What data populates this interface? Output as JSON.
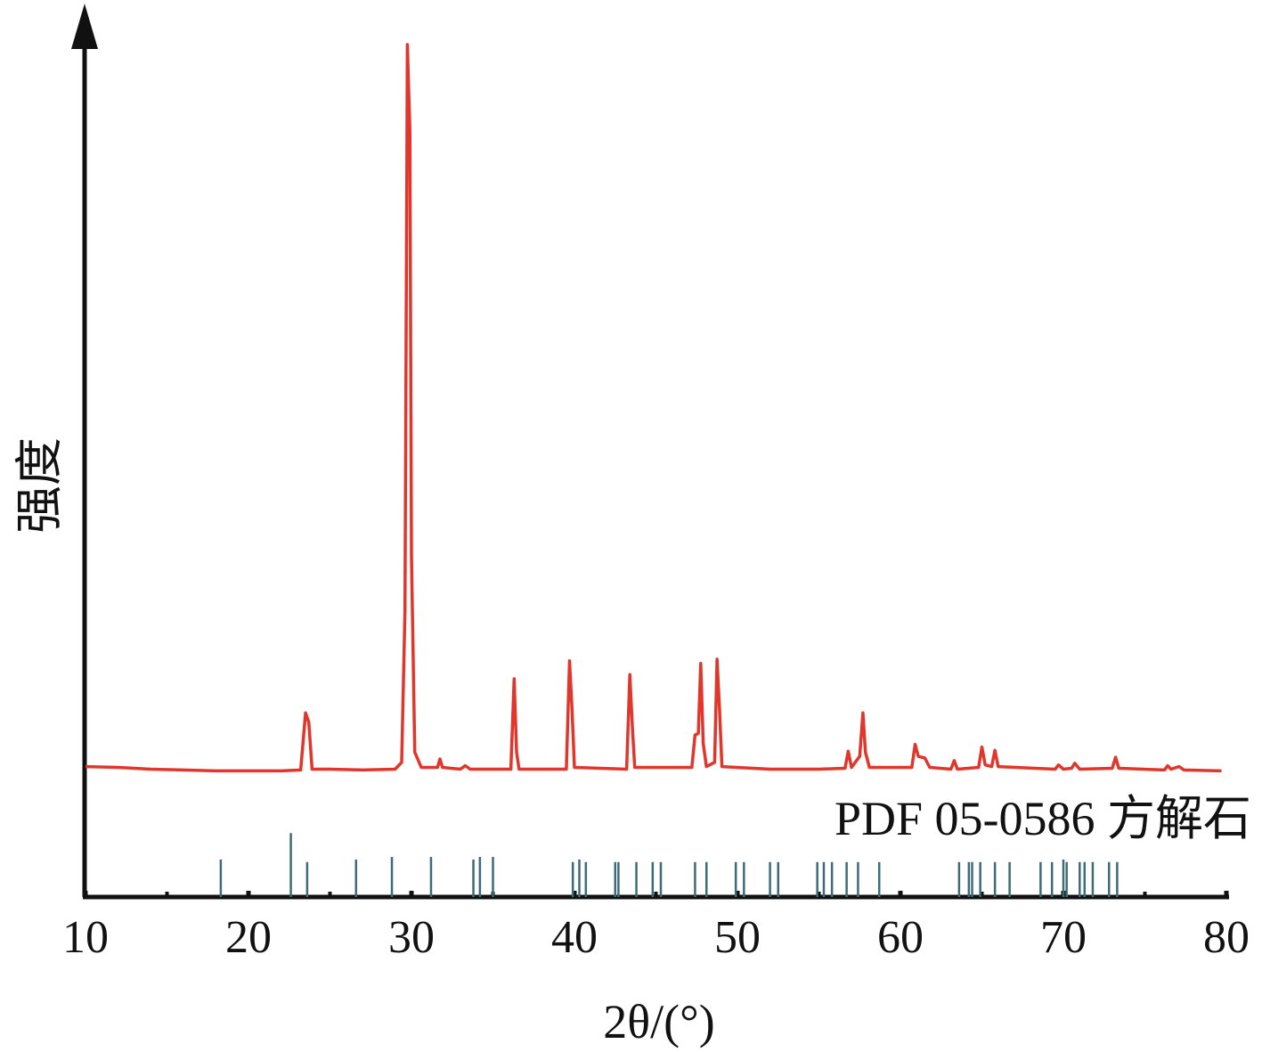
{
  "chart_data": {
    "type": "line",
    "xlabel": "2θ/(°)",
    "ylabel": "强度",
    "xlim": [
      10,
      80
    ],
    "xticks": [
      10,
      20,
      30,
      40,
      50,
      60,
      70,
      80
    ],
    "xminorticks": [
      15,
      25,
      35,
      45,
      55,
      65,
      75
    ],
    "ylim": [
      0,
      100
    ],
    "series": [
      {
        "color": "#e0362c",
        "style": "line",
        "x": [
          10,
          12,
          14,
          16,
          18,
          20,
          22,
          23.2,
          23.5,
          23.7,
          23.9,
          25,
          27,
          29,
          29.4,
          29.6,
          29.75,
          29.9,
          30.0,
          30.2,
          30.6,
          31.6,
          31.75,
          31.9,
          33,
          33.3,
          33.6,
          36.1,
          36.3,
          36.45,
          36.6,
          39.5,
          39.7,
          39.85,
          40.0,
          43.2,
          43.4,
          43.55,
          43.7,
          47.2,
          47.4,
          47.6,
          47.75,
          47.9,
          48.1,
          48.6,
          48.75,
          48.9,
          49.05,
          52,
          55,
          56.6,
          56.8,
          57,
          57.5,
          57.7,
          57.85,
          58.1,
          60.7,
          60.9,
          61.1,
          61.5,
          61.8,
          63.1,
          63.3,
          63.5,
          64.8,
          65.0,
          65.2,
          65.6,
          65.8,
          66.0,
          69.5,
          69.7,
          70.0,
          70.5,
          70.7,
          71,
          73.0,
          73.2,
          73.4,
          76.2,
          76.4,
          76.6,
          77.1,
          77.4,
          79.7
        ],
        "values": [
          15.3,
          15.2,
          15.0,
          14.9,
          14.8,
          14.8,
          14.8,
          14.9,
          21.6,
          20.5,
          15.0,
          15.0,
          14.9,
          15.0,
          15.8,
          33.5,
          100,
          90,
          40,
          17,
          15.2,
          15.2,
          16.2,
          15.2,
          15.0,
          15.4,
          15.0,
          15.0,
          25.6,
          17,
          15.0,
          15.0,
          27.7,
          22,
          15.2,
          15.0,
          26.1,
          20,
          15.2,
          15.2,
          19.0,
          19.2,
          27.4,
          18.0,
          15.3,
          15.8,
          27.9,
          22.0,
          15.3,
          15.0,
          15.0,
          15.1,
          17.1,
          15.2,
          16.5,
          21.6,
          17,
          15.2,
          15.2,
          17.9,
          16.5,
          16.3,
          15.2,
          15.0,
          16.0,
          15.0,
          15.2,
          17.6,
          15.5,
          15.3,
          17.2,
          15.3,
          15.0,
          15.5,
          15.0,
          15.1,
          15.7,
          15.0,
          15.1,
          16.4,
          15.1,
          14.9,
          15.4,
          15.0,
          15.3,
          14.9,
          14.8
        ]
      },
      {
        "name": "PDF 05-0586  方解石",
        "color": "#3d6b78",
        "style": "stick",
        "x": [
          18.3,
          22.6,
          23.6,
          26.6,
          28.8,
          31.2,
          33.8,
          34.2,
          35.0,
          39.9,
          40.3,
          40.7,
          42.5,
          42.7,
          43.8,
          44.8,
          45.3,
          47.4,
          48.1,
          49.9,
          50.4,
          52.0,
          52.5,
          54.9,
          55.3,
          55.8,
          56.7,
          57.4,
          58.7,
          63.6,
          64.2,
          64.4,
          64.9,
          65.8,
          66.7,
          68.6,
          69.3,
          70.0,
          70.2,
          71.0,
          71.3,
          71.8,
          72.8,
          73.3
        ],
        "values": [
          4.4,
          7.5,
          4.1,
          4.4,
          4.7,
          4.7,
          4.4,
          4.7,
          4.7,
          4.1,
          4.4,
          4.1,
          4.1,
          4.1,
          4.1,
          4.1,
          4.1,
          4.1,
          4.1,
          4.1,
          4.1,
          4.1,
          4.1,
          4.1,
          4.1,
          4.1,
          4.1,
          4.1,
          4.1,
          4.1,
          4.1,
          4.1,
          4.1,
          4.1,
          4.1,
          4.1,
          4.1,
          4.4,
          4.1,
          4.1,
          4.1,
          4.1,
          4.1,
          4.1
        ]
      }
    ]
  }
}
